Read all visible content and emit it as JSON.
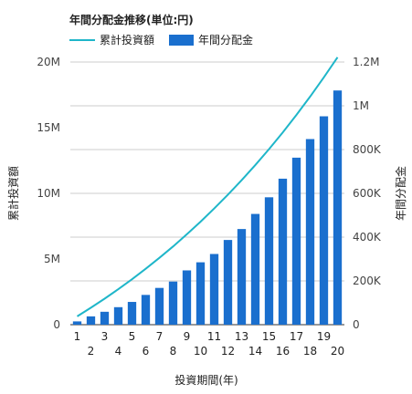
{
  "chart_data": {
    "type": "bar+line",
    "title": "年間分配金推移(単位:円)",
    "xlabel": "投資期間(年)",
    "ylabel_left": "累計投資額",
    "ylabel_right": "年間分配金",
    "categories": [
      "1",
      "2",
      "3",
      "4",
      "5",
      "6",
      "7",
      "8",
      "9",
      "10",
      "11",
      "12",
      "13",
      "14",
      "15",
      "16",
      "17",
      "18",
      "19",
      "20"
    ],
    "ylim_left": [
      0,
      20000000
    ],
    "ylim_right": [
      0,
      1200000
    ],
    "left_ticks": [
      "0",
      "5M",
      "10M",
      "15M",
      "20M"
    ],
    "right_ticks": [
      "0",
      "200K",
      "400K",
      "600K",
      "800K",
      "1M",
      "1.2M"
    ],
    "grid": true,
    "legend_position": "top-left",
    "series": [
      {
        "name": "累計投資額",
        "type": "line",
        "axis": "left",
        "color": "#1fb6c9",
        "values": [
          630000,
          1290000,
          1980000,
          2700000,
          3460000,
          4260000,
          5090000,
          5960000,
          6880000,
          7840000,
          8850000,
          9900000,
          11000000,
          12160000,
          13370000,
          14640000,
          15970000,
          17370000,
          18830000,
          20360000
        ]
      },
      {
        "name": "年間分配金",
        "type": "bar",
        "axis": "right",
        "color": "#1a6fce",
        "values": [
          15000,
          38000,
          59000,
          80000,
          104000,
          136000,
          168000,
          197000,
          248000,
          285000,
          323000,
          387000,
          437000,
          506000,
          582000,
          667000,
          763000,
          848000,
          952000,
          1070000
        ]
      }
    ]
  }
}
